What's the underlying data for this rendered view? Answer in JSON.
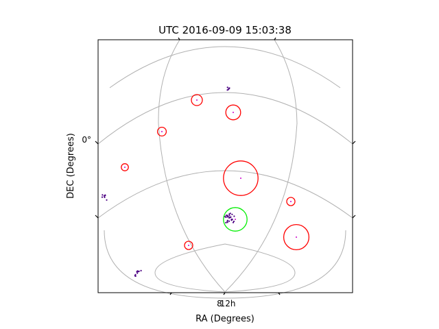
{
  "chart_data": {
    "type": "scatter",
    "projection": "sky",
    "title": "UTC 2016-09-09 15:03:38",
    "xlabel": "RA (Degrees)",
    "ylabel": "DEC (Degrees)",
    "dec_tick_labels": [
      "0°"
    ],
    "ra_tick_labels": [
      "8",
      "12h"
    ],
    "grid": true,
    "colors": {
      "grid": "#b0b0b0",
      "target_circle": "#ff0000",
      "selected_circle": "#00ee00",
      "source_points": "#4b0082",
      "center_points": "#cc00cc"
    },
    "targets": [
      {
        "id": 1,
        "selected": false,
        "size": 1.0
      },
      {
        "id": 2,
        "selected": false,
        "size": 1.35
      },
      {
        "id": 3,
        "selected": false,
        "size": 0.8
      },
      {
        "id": 4,
        "selected": false,
        "size": 0.65
      },
      {
        "id": 5,
        "selected": false,
        "size": 3.15
      },
      {
        "id": 6,
        "selected": false,
        "size": 0.75
      },
      {
        "id": 7,
        "selected": false,
        "size": 2.3
      },
      {
        "id": 8,
        "selected": false,
        "size": 0.75
      },
      {
        "id": 9,
        "selected": true,
        "size": 2.15
      }
    ],
    "source_clusters": [
      {
        "id": "a",
        "count": 6
      },
      {
        "id": "b",
        "count": 7
      },
      {
        "id": "c",
        "count": 9
      },
      {
        "id": "d",
        "count": 26
      }
    ]
  }
}
